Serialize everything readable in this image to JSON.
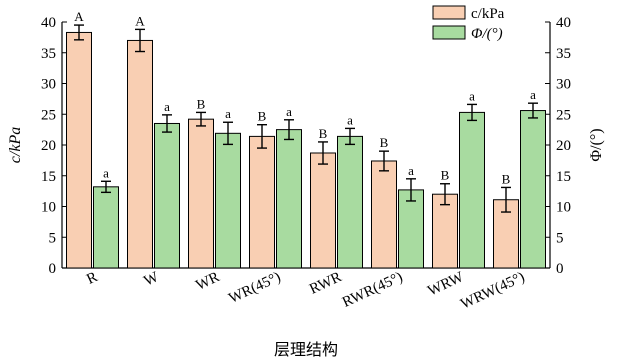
{
  "chart_data": {
    "type": "bar",
    "title": "",
    "xlabel": "层理结构",
    "ylabel_left": "c/kPa",
    "ylabel_right": "Φ/(°)",
    "ylim": [
      0,
      40
    ],
    "y_ticks": [
      0,
      5,
      10,
      15,
      20,
      25,
      30,
      35,
      40
    ],
    "categories": [
      "R",
      "W",
      "WR",
      "WR(45°)",
      "RWR",
      "RWR(45°)",
      "WRW",
      "WRW(45°)"
    ],
    "series": [
      {
        "name": "c/kPa",
        "color": "#f9cfb3",
        "values": [
          38.3,
          37.0,
          24.2,
          21.4,
          18.7,
          17.4,
          12.0,
          11.1
        ],
        "errors": [
          1.2,
          1.8,
          1.1,
          1.9,
          1.8,
          1.6,
          1.7,
          2.0
        ],
        "letters": [
          "A",
          "A",
          "B",
          "B",
          "B",
          "B",
          "B",
          "B"
        ]
      },
      {
        "name": "Φ/(°)",
        "color": "#a8dba0",
        "values": [
          13.2,
          23.5,
          21.9,
          22.5,
          21.4,
          12.7,
          25.3,
          25.6
        ],
        "errors": [
          0.9,
          1.4,
          1.8,
          1.6,
          1.3,
          1.8,
          1.3,
          1.2
        ],
        "letters": [
          "a",
          "a",
          "a",
          "a",
          "a",
          "a",
          "a",
          "a"
        ]
      }
    ],
    "legend_position": "top-right"
  }
}
